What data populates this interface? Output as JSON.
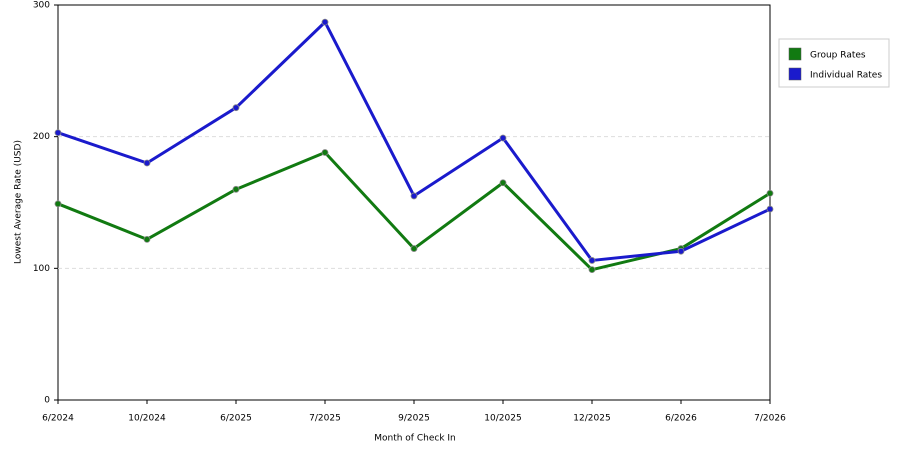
{
  "chart_data": {
    "type": "line",
    "x_label": "Month of Check In",
    "y_label": "Lowest Average Rate (USD)",
    "categories": [
      "6/2024",
      "10/2024",
      "6/2025",
      "7/2025",
      "9/2025",
      "10/2025",
      "12/2025",
      "6/2026",
      "7/2026"
    ],
    "series": [
      {
        "name": "Group Rates",
        "color": "#117a11",
        "values": [
          149,
          122,
          160,
          188,
          115,
          165,
          99,
          115,
          157
        ]
      },
      {
        "name": "Individual Rates",
        "color": "#1a1acc",
        "values": [
          203,
          180,
          222,
          287,
          155,
          199,
          106,
          113,
          145
        ]
      }
    ],
    "ylim": [
      0,
      300
    ],
    "yticks": [
      0,
      100,
      200,
      300
    ],
    "grid": true,
    "legend": "right"
  }
}
